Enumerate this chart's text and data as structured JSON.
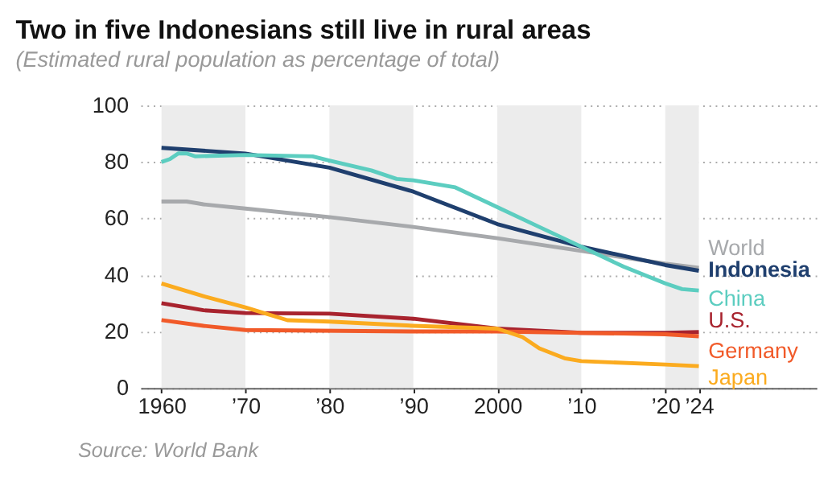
{
  "chart_data": {
    "type": "line",
    "title": "Two in five Indonesians still live in rural areas",
    "subtitle": "(Estimated rural population as percentage of total)",
    "xlim": [
      1957.5,
      2038
    ],
    "ylim": [
      0,
      100
    ],
    "xticks": [
      {
        "value": 1960,
        "label": "1960"
      },
      {
        "value": 1970,
        "label": "’70"
      },
      {
        "value": 1980,
        "label": "’80"
      },
      {
        "value": 1990,
        "label": "’90"
      },
      {
        "value": 2000,
        "label": "2000"
      },
      {
        "value": 2010,
        "label": "’10"
      },
      {
        "value": 2020,
        "label": "’20"
      },
      {
        "value": 2024,
        "label": "’24"
      }
    ],
    "yticks": [
      0,
      20,
      40,
      60,
      80,
      100
    ],
    "grid": "y",
    "bands": [
      {
        "axis": "x",
        "from": 1960,
        "to": 1970,
        "color": "#ececec"
      },
      {
        "axis": "x",
        "from": 1980,
        "to": 1990,
        "color": "#ececec"
      },
      {
        "axis": "x",
        "from": 2000,
        "to": 2010,
        "color": "#ececec"
      },
      {
        "axis": "x",
        "from": 2020,
        "to": 2024,
        "color": "#ececec"
      }
    ],
    "series": [
      {
        "name": "World",
        "color": "#a7a9ac",
        "x": [
          1960,
          1963,
          1965,
          1970,
          1980,
          1990,
          2000,
          2010,
          2020,
          2024
        ],
        "values": [
          66,
          66,
          65,
          63.5,
          60.5,
          57,
          53,
          48.5,
          44,
          42.5
        ]
      },
      {
        "name": "Indonesia",
        "color": "#1f3f6e",
        "x": [
          1960,
          1970,
          1980,
          1990,
          2000,
          2010,
          2020,
          2024
        ],
        "values": [
          85,
          83,
          78,
          69.5,
          58,
          50,
          43.5,
          41.5
        ]
      },
      {
        "name": "China",
        "color": "#5ccdc0",
        "x": [
          1960,
          1961,
          1962,
          1963,
          1964,
          1970,
          1978,
          1980,
          1985,
          1988,
          1990,
          1995,
          2000,
          2005,
          2010,
          2015,
          2020,
          2022,
          2024
        ],
        "values": [
          80,
          81,
          83,
          83,
          82,
          82.5,
          82,
          80.5,
          77,
          74,
          73.5,
          71,
          64,
          57,
          50,
          43,
          37,
          35,
          34.5
        ]
      },
      {
        "name": "U.S.",
        "color": "#a8232e",
        "x": [
          1960,
          1965,
          1970,
          1980,
          1990,
          2000,
          2010,
          2020,
          2024
        ],
        "values": [
          30,
          27.5,
          26.5,
          26.3,
          24.5,
          21,
          19.5,
          19.5,
          19.8
        ]
      },
      {
        "name": "Germany",
        "color": "#f15a29",
        "x": [
          1960,
          1965,
          1970,
          1990,
          2000,
          2010,
          2020,
          2024
        ],
        "values": [
          24,
          22,
          20.5,
          20,
          20,
          19.5,
          19,
          18.3
        ]
      },
      {
        "name": "Japan",
        "color": "#fbab1f",
        "x": [
          1960,
          1965,
          1970,
          1975,
          1980,
          1990,
          2000,
          2003,
          2005,
          2008,
          2010,
          2020,
          2024
        ],
        "values": [
          37,
          32.5,
          28.5,
          24,
          23.5,
          22,
          21,
          18,
          14,
          10.5,
          9.5,
          8.3,
          7.7
        ]
      }
    ],
    "line_style": "solid",
    "marker": "none",
    "annotations": [
      "Source: World Bank"
    ]
  }
}
